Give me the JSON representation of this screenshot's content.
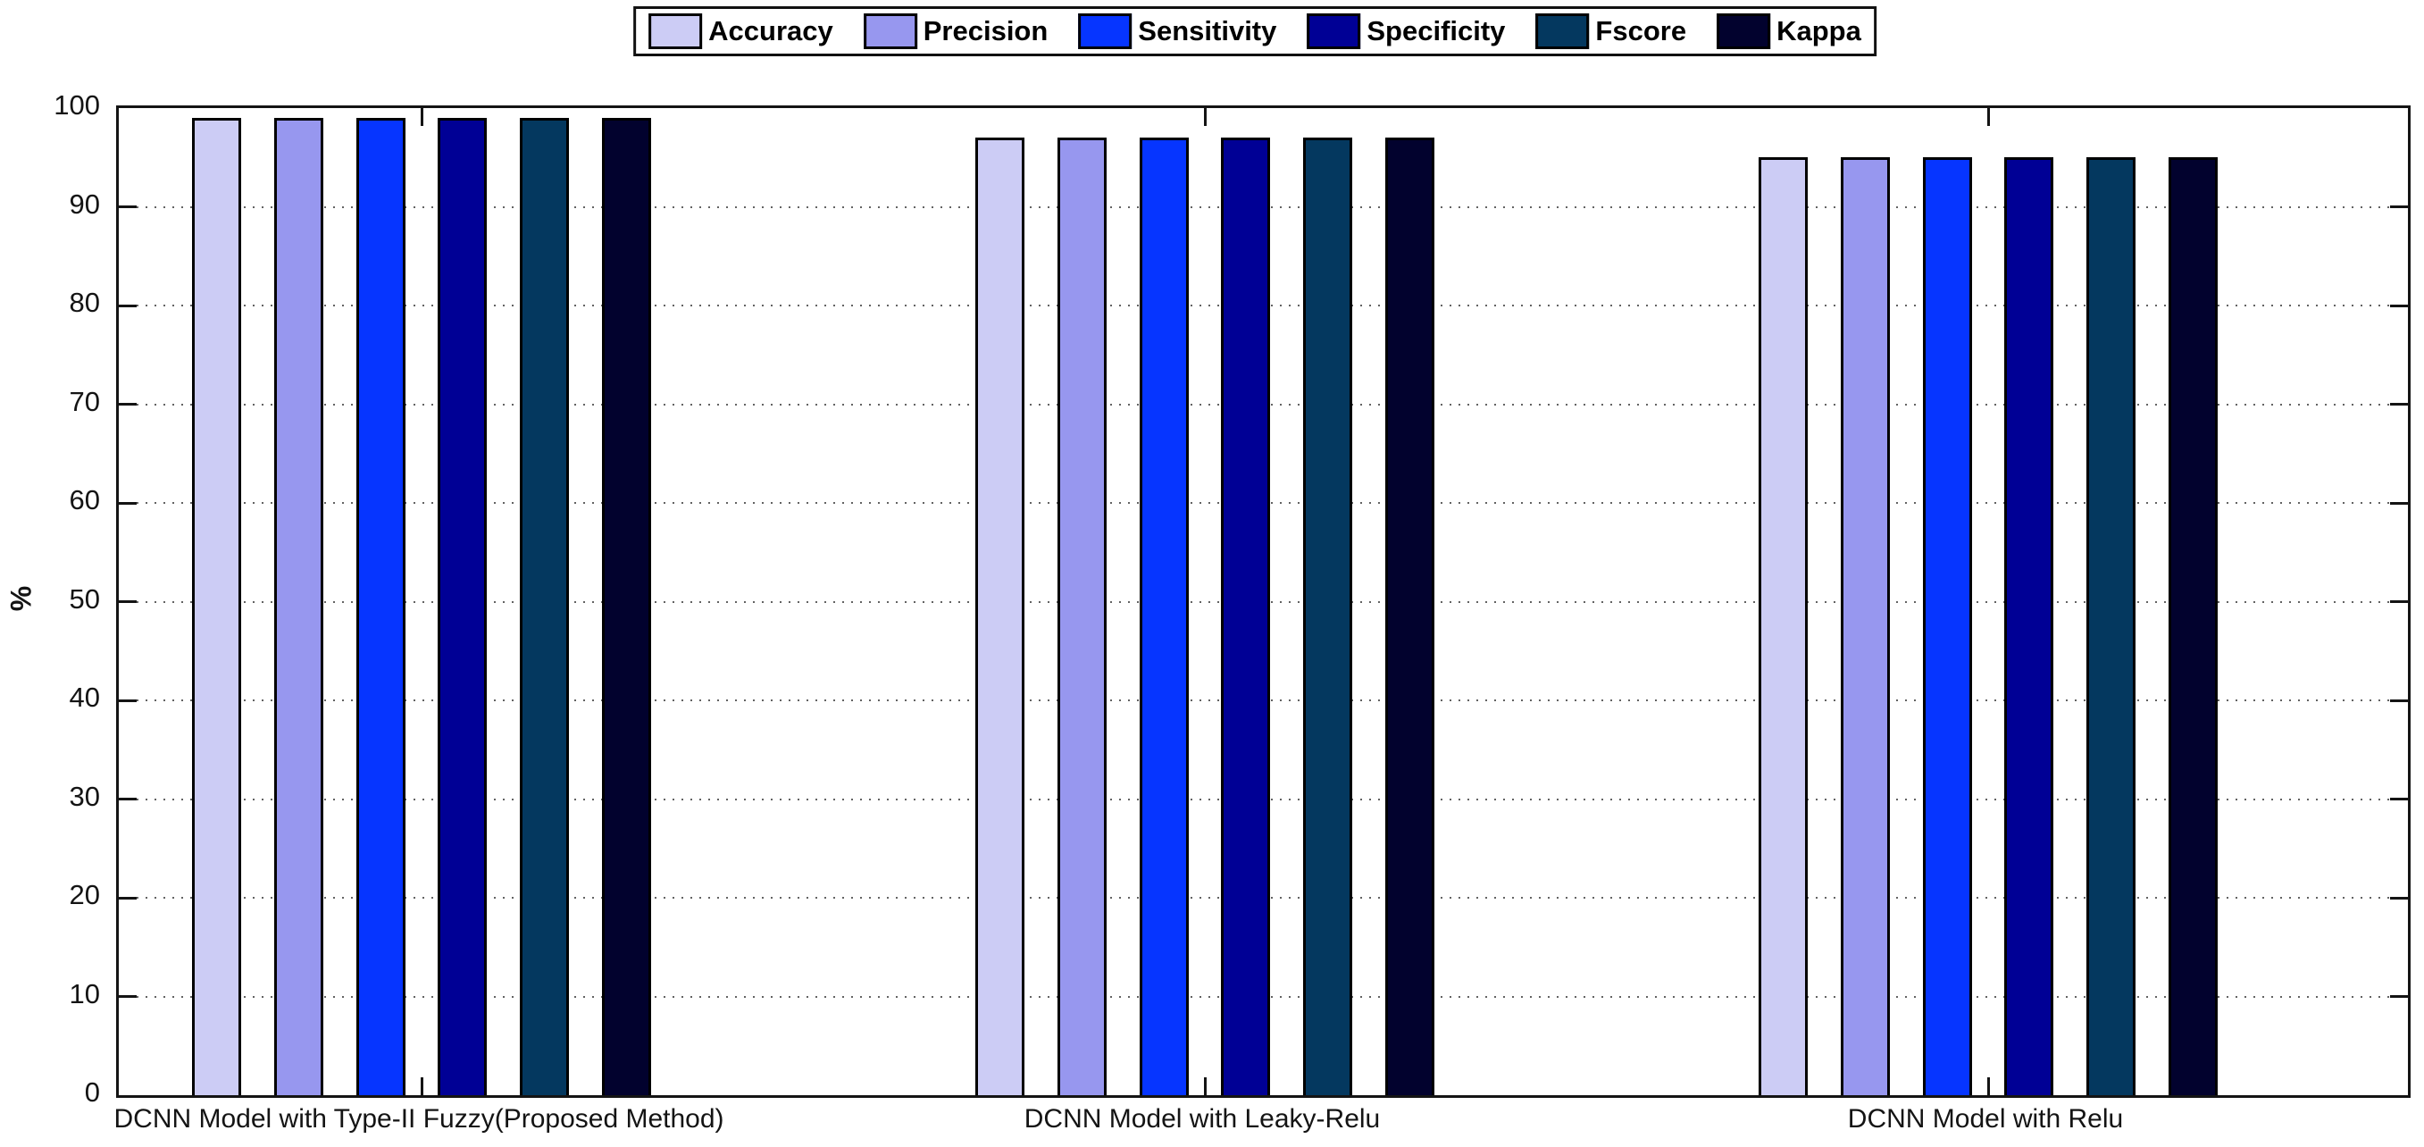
{
  "figure": {
    "background": "#ffffff"
  },
  "chart_data": {
    "type": "bar",
    "title": "",
    "xlabel": "",
    "ylabel": "%",
    "ylim": [
      0,
      100
    ],
    "yticks": [
      0,
      10,
      20,
      30,
      40,
      50,
      60,
      70,
      80,
      90,
      100
    ],
    "grid": "y-dotted",
    "legend_position": "top-center-boxed",
    "bar_edge_color": "#000000",
    "categories": [
      "DCNN Model with Type-II Fuzzy(Proposed Method)",
      "DCNN Model with Leaky-Relu",
      "DCNN Model with Relu"
    ],
    "series": [
      {
        "name": "Accuracy",
        "color": "#ccccf5",
        "values": [
          99,
          97,
          95
        ]
      },
      {
        "name": "Precision",
        "color": "#9797ef",
        "values": [
          99,
          97,
          95
        ]
      },
      {
        "name": "Sensitivity",
        "color": "#0635ff",
        "values": [
          99,
          97,
          95
        ]
      },
      {
        "name": "Specificity",
        "color": "#000095",
        "values": [
          99,
          97,
          95
        ]
      },
      {
        "name": "Fscore",
        "color": "#04385f",
        "values": [
          99,
          97,
          95
        ]
      },
      {
        "name": "Kappa",
        "color": "#02022e",
        "values": [
          99,
          97,
          95
        ]
      }
    ]
  }
}
